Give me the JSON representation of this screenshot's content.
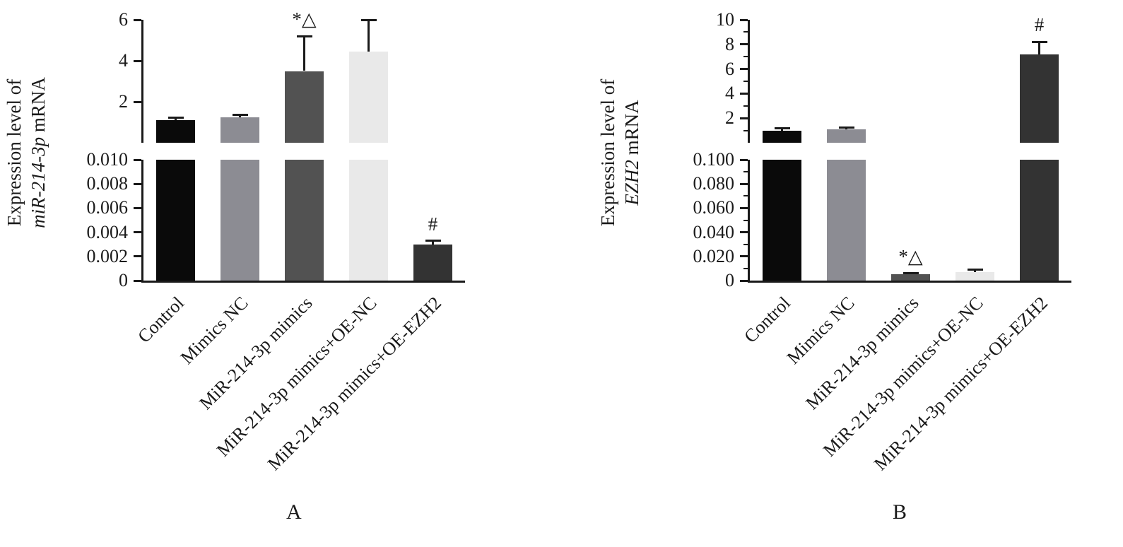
{
  "chart_data": [
    {
      "type": "bar",
      "panel_letter": "A",
      "ylabel_prefix": "Expression level of",
      "ylabel_gene": "miR-214-3p",
      "ylabel_suffix": " mRNA",
      "categories": [
        "Control",
        "Mimics NC",
        "MiR-214-3p mimics",
        "MiR-214-3p mimics+OE-NC",
        "MiR-214-3p mimics+OE-EZH2"
      ],
      "values": [
        1.1,
        1.25,
        3.5,
        4.45,
        0.003
      ],
      "errors": [
        0.12,
        0.12,
        1.7,
        1.55,
        0.0003
      ],
      "annotations": [
        "",
        "",
        "*△",
        "",
        "#"
      ],
      "bar_colors": [
        "#0a0a0a",
        "#8c8c93",
        "#525252",
        "#e9e9e9",
        "#333333"
      ],
      "upper_axis": {
        "range": [
          0,
          6
        ],
        "ticks": [
          {
            "v": 6,
            "label": "6"
          },
          {
            "v": 4,
            "label": "4"
          },
          {
            "v": 2,
            "label": "2"
          }
        ],
        "minor": []
      },
      "lower_axis": {
        "range": [
          0,
          0.01
        ],
        "ticks": [
          {
            "v": 0.01,
            "label": "0.010"
          },
          {
            "v": 0.008,
            "label": "0.008"
          },
          {
            "v": 0.006,
            "label": "0.006"
          },
          {
            "v": 0.004,
            "label": "0.004"
          },
          {
            "v": 0.002,
            "label": "0.002"
          },
          {
            "v": 0,
            "label": "0"
          }
        ],
        "minor": []
      },
      "grid": false,
      "legend": "none",
      "axis_break": true
    },
    {
      "type": "bar",
      "panel_letter": "B",
      "ylabel_prefix": "Expression level of",
      "ylabel_gene": "EZH2",
      "ylabel_suffix": " mRNA",
      "categories": [
        "Control",
        "Mimics NC",
        "MiR-214-3p mimics",
        "MiR-214-3p mimics+OE-NC",
        "MiR-214-3p mimics+OE-EZH2"
      ],
      "values": [
        1.0,
        1.1,
        0.005,
        0.007,
        7.2
      ],
      "errors": [
        0.15,
        0.12,
        0.001,
        0.002,
        1.0
      ],
      "annotations": [
        "",
        "",
        "*△",
        "",
        "#"
      ],
      "bar_colors": [
        "#0a0a0a",
        "#8c8c93",
        "#525252",
        "#e9e9e9",
        "#333333"
      ],
      "upper_axis": {
        "range": [
          0,
          10
        ],
        "ticks": [
          {
            "v": 10,
            "label": "10"
          },
          {
            "v": 8,
            "label": "8"
          },
          {
            "v": 6,
            "label": "6"
          },
          {
            "v": 4,
            "label": "4"
          },
          {
            "v": 2,
            "label": "2"
          }
        ],
        "minor": [
          1,
          3,
          5,
          7,
          9
        ]
      },
      "lower_axis": {
        "range": [
          0,
          0.1
        ],
        "ticks": [
          {
            "v": 0.1,
            "label": "0.100"
          },
          {
            "v": 0.08,
            "label": "0.080"
          },
          {
            "v": 0.06,
            "label": "0.060"
          },
          {
            "v": 0.04,
            "label": "0.040"
          },
          {
            "v": 0.02,
            "label": "0.020"
          },
          {
            "v": 0,
            "label": "0"
          }
        ],
        "minor": [
          0.01,
          0.03,
          0.05,
          0.07,
          0.09
        ]
      },
      "grid": false,
      "legend": "none",
      "axis_break": true
    }
  ]
}
